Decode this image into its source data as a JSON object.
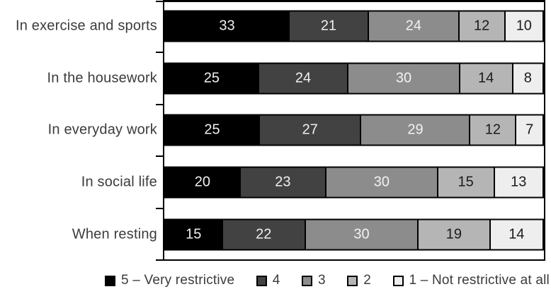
{
  "chart_data": {
    "type": "bar",
    "orientation": "horizontal",
    "stacked": true,
    "normalized_percent": true,
    "title": "",
    "xlabel": "",
    "ylabel": "",
    "grid": false,
    "legend_position": "bottom",
    "value_labels_shown": true,
    "categories": [
      "In exercise and sports",
      "In the housework",
      "In everyday work",
      "In social life",
      "When resting"
    ],
    "series": [
      {
        "name": "5 – Very restrictive",
        "color": "#000000",
        "label_color": "#f0f0f0",
        "values": [
          33,
          25,
          25,
          20,
          15
        ]
      },
      {
        "name": "4",
        "color": "#424242",
        "label_color": "#f0f0f0",
        "values": [
          21,
          24,
          27,
          23,
          22
        ]
      },
      {
        "name": "3",
        "color": "#8c8c8c",
        "label_color": "#f2f2f2",
        "values": [
          24,
          30,
          29,
          30,
          30
        ]
      },
      {
        "name": "2",
        "color": "#b5b5b5",
        "label_color": "#1b1b1b",
        "values": [
          12,
          14,
          12,
          15,
          19
        ]
      },
      {
        "name": "1 – Not restrictive at all",
        "color": "#eeeeee",
        "label_color": "#1b1b1b",
        "values": [
          10,
          8,
          7,
          13,
          14
        ]
      }
    ],
    "frame_color": "#000000",
    "background_color": "#ffffff",
    "category_label_color": "#3b3b3b"
  }
}
